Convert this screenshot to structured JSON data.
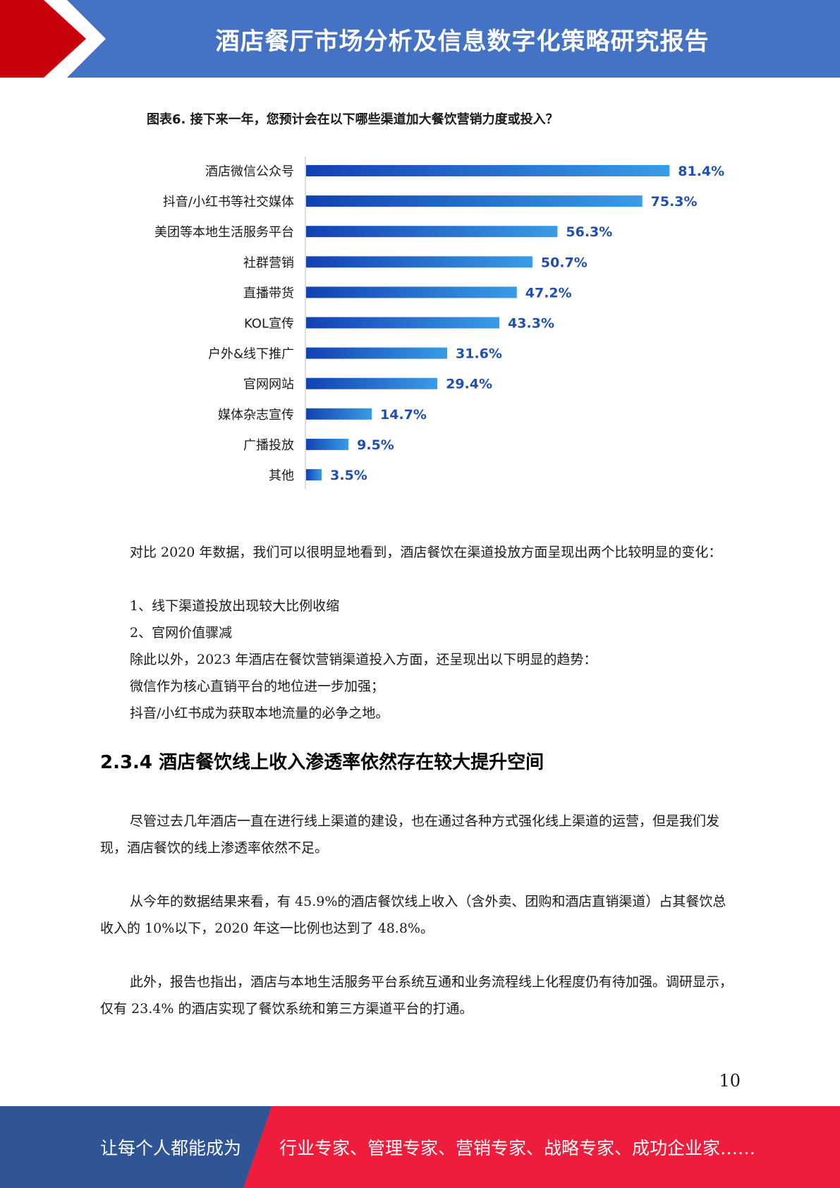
{
  "header": {
    "title": "酒店餐厅市场分析及信息数字化策略研究报告"
  },
  "chart_data": {
    "type": "bar",
    "orientation": "horizontal",
    "title": "图表6. 接下来一年，您预计会在以下哪些渠道加大餐饮营销力度或投入？",
    "categories": [
      "酒店微信公众号",
      "抖音/小红书等社交媒体",
      "美团等本地生活服务平台",
      "社群营销",
      "直播带货",
      "KOL宣传",
      "户外&线下推广",
      "官网网站",
      "媒体杂志宣传",
      "广播投放",
      "其他"
    ],
    "values": [
      81.4,
      75.3,
      56.3,
      50.7,
      47.2,
      43.3,
      31.6,
      29.4,
      14.7,
      9.5,
      3.5
    ],
    "value_labels": [
      "81.4%",
      "75.3%",
      "56.3%",
      "50.7%",
      "47.2%",
      "43.3%",
      "31.6%",
      "29.4%",
      "14.7%",
      "9.5%",
      "3.5%"
    ],
    "xlim": [
      0,
      100
    ],
    "grid": false,
    "colors": {
      "bar_start": "#1141b3",
      "bar_end": "#3a9be6",
      "label": "#1f4fb0"
    }
  },
  "body": {
    "p1": "对比 2020 年数据，我们可以很明显地看到，酒店餐饮在渠道投放方面呈现出两个比较明显的变化：",
    "l1": "1、线下渠道投放出现较大比例收缩",
    "l2": "2、官网价值骤减",
    "l3": "除此以外，2023 年酒店在餐饮营销渠道投入方面，还呈现出以下明显的趋势：",
    "l4": "微信作为核心直销平台的地位进一步加强；",
    "l5": "抖音/小红书成为获取本地流量的必争之地。",
    "section_title": "2.3.4 酒店餐饮线上收入渗透率依然存在较大提升空间",
    "p2": "尽管过去几年酒店一直在进行线上渠道的建设，也在通过各种方式强化线上渠道的运营，但是我们发现，酒店餐饮的线上渗透率依然不足。",
    "p3": "从今年的数据结果来看，有 45.9%的酒店餐饮线上收入（含外卖、团购和酒店直销渠道）占其餐饮总收入的 10%以下，2020 年这一比例也达到了 48.8%。",
    "p4": "此外，报告也指出，酒店与本地生活服务平台系统互通和业务流程线上化程度仍有待加强。调研显示，仅有 23.4% 的酒店实现了餐饮系统和第三方渠道平台的打通。"
  },
  "page_number": "10",
  "footer": {
    "left": "让每个人都能成为",
    "right": "行业专家、管理专家、营销专家、战略专家、成功企业家……"
  }
}
